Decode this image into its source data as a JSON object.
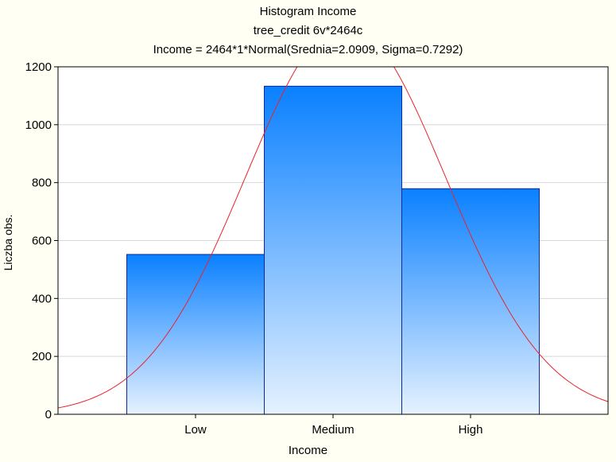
{
  "chart_data": {
    "type": "bar",
    "title_lines": [
      "Histogram     Income",
      "tree_credit 6v*2464c",
      "Income = 2464*1*Normal(Srednia=2.0909, Sigma=0.7292)"
    ],
    "xlabel": "Income",
    "ylabel": "Liczba obs.",
    "categories": [
      "Low",
      "Medium",
      "High"
    ],
    "values": [
      552,
      1133,
      779
    ],
    "ylim": [
      0,
      1200
    ],
    "yticks": [
      0,
      200,
      400,
      600,
      800,
      1000,
      1200
    ],
    "grid": true,
    "bar_gradient": [
      "#0A80FF",
      "#E6F2FF"
    ],
    "curve": {
      "type": "normal",
      "n": 2464,
      "bin_width": 1,
      "mean": 2.0909,
      "sigma": 0.7292,
      "color": "#E8242C"
    }
  }
}
